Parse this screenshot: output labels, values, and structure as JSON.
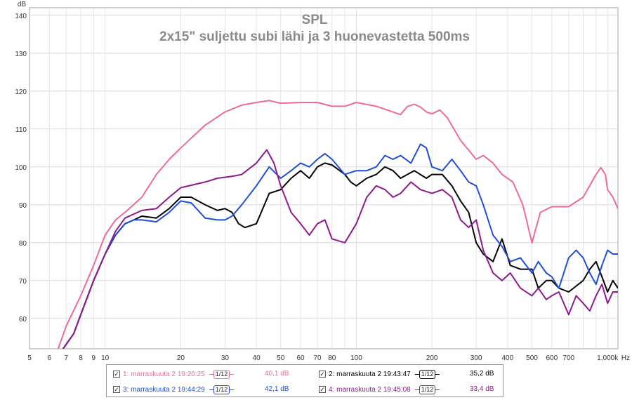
{
  "chart_data": {
    "type": "line",
    "title": "SPL",
    "subtitle": "2x15\" suljettu subi lähi ja 3 huonevastetta 500ms",
    "ylabel": "dB",
    "xlabel": "Hz",
    "x_scale": "log",
    "xlim": [
      5,
      1100
    ],
    "ylim": [
      52,
      142
    ],
    "y_ticks": [
      60,
      70,
      80,
      90,
      100,
      110,
      120,
      130,
      140
    ],
    "x_tick_values": [
      5,
      6,
      7,
      8,
      9,
      10,
      20,
      30,
      40,
      50,
      60,
      70,
      80,
      100,
      200,
      300,
      400,
      500,
      600,
      700,
      1000
    ],
    "x_tick_labels": [
      "5",
      "6",
      "7",
      "8",
      "9",
      "10",
      "20",
      "30",
      "40",
      "50",
      "60",
      "70",
      "80",
      "100",
      "200",
      "300",
      "400",
      "500",
      "600",
      "700",
      "1,000k"
    ],
    "grid": true,
    "legend_position": "bottom",
    "series": [
      {
        "name": "1: marraskuuta 2 19:20:25",
        "color": "#ee6a9a",
        "smoothing": "1/12",
        "level": "40,1 dB",
        "points": [
          [
            6.5,
            52
          ],
          [
            7,
            58
          ],
          [
            8,
            66
          ],
          [
            9,
            74
          ],
          [
            10,
            82
          ],
          [
            11,
            86
          ],
          [
            12,
            88
          ],
          [
            14,
            92
          ],
          [
            16,
            98
          ],
          [
            18,
            102
          ],
          [
            20,
            105
          ],
          [
            25,
            111
          ],
          [
            30,
            114.5
          ],
          [
            35,
            116.3
          ],
          [
            40,
            117
          ],
          [
            45,
            117.5
          ],
          [
            50,
            116.8
          ],
          [
            60,
            117
          ],
          [
            70,
            117
          ],
          [
            80,
            116
          ],
          [
            90,
            116
          ],
          [
            100,
            117
          ],
          [
            120,
            116
          ],
          [
            150,
            113.8
          ],
          [
            160,
            116
          ],
          [
            170,
            116.5
          ],
          [
            180,
            115.8
          ],
          [
            190,
            114.5
          ],
          [
            200,
            114
          ],
          [
            215,
            115
          ],
          [
            230,
            113
          ],
          [
            260,
            107
          ],
          [
            300,
            102
          ],
          [
            320,
            103
          ],
          [
            350,
            101
          ],
          [
            380,
            98
          ],
          [
            420,
            96
          ],
          [
            460,
            90
          ],
          [
            500,
            80
          ],
          [
            540,
            88
          ],
          [
            600,
            89.5
          ],
          [
            700,
            89.5
          ],
          [
            800,
            92
          ],
          [
            900,
            98
          ],
          [
            940,
            99.8
          ],
          [
            980,
            98
          ],
          [
            1000,
            94
          ],
          [
            1050,
            92
          ],
          [
            1100,
            89
          ]
        ]
      },
      {
        "name": "2: marraskuuta 2 19:43:47",
        "color": "#000000",
        "smoothing": "1/12",
        "level": "35,2 dB",
        "points": [
          [
            6.8,
            52
          ],
          [
            7.5,
            56
          ],
          [
            8,
            61
          ],
          [
            9,
            70
          ],
          [
            10,
            77
          ],
          [
            11,
            82
          ],
          [
            12,
            85
          ],
          [
            13,
            86
          ],
          [
            14,
            87
          ],
          [
            16,
            86.5
          ],
          [
            18,
            89
          ],
          [
            20,
            92
          ],
          [
            22,
            92
          ],
          [
            25,
            90
          ],
          [
            28,
            88.5
          ],
          [
            30,
            89
          ],
          [
            32,
            88
          ],
          [
            34,
            85
          ],
          [
            36,
            84
          ],
          [
            40,
            85
          ],
          [
            45,
            93
          ],
          [
            50,
            94
          ],
          [
            55,
            97
          ],
          [
            60,
            99
          ],
          [
            65,
            97
          ],
          [
            70,
            100
          ],
          [
            75,
            101
          ],
          [
            80,
            100.5
          ],
          [
            90,
            98
          ],
          [
            95,
            96
          ],
          [
            100,
            95
          ],
          [
            110,
            97
          ],
          [
            120,
            98
          ],
          [
            130,
            100
          ],
          [
            140,
            99
          ],
          [
            150,
            97
          ],
          [
            170,
            99
          ],
          [
            190,
            97
          ],
          [
            200,
            98
          ],
          [
            220,
            98
          ],
          [
            240,
            95
          ],
          [
            260,
            91
          ],
          [
            280,
            88
          ],
          [
            300,
            80
          ],
          [
            320,
            77
          ],
          [
            350,
            75
          ],
          [
            380,
            81
          ],
          [
            410,
            74
          ],
          [
            450,
            73
          ],
          [
            500,
            73
          ],
          [
            530,
            68
          ],
          [
            570,
            70
          ],
          [
            600,
            70
          ],
          [
            640,
            68
          ],
          [
            700,
            67
          ],
          [
            800,
            70
          ],
          [
            850,
            73
          ],
          [
            900,
            75
          ],
          [
            950,
            71
          ],
          [
            1000,
            67
          ],
          [
            1050,
            70
          ],
          [
            1100,
            68
          ]
        ]
      },
      {
        "name": "3: marraskuuta 2 19:44:29",
        "color": "#1f4fd8",
        "smoothing": "1/12",
        "level": "42,1 dB",
        "points": [
          [
            6.8,
            52
          ],
          [
            7.5,
            56
          ],
          [
            8,
            61
          ],
          [
            9,
            70
          ],
          [
            10,
            77
          ],
          [
            11,
            82
          ],
          [
            12,
            85
          ],
          [
            13,
            86
          ],
          [
            14,
            86
          ],
          [
            16,
            85.5
          ],
          [
            18,
            88
          ],
          [
            20,
            91
          ],
          [
            22,
            90.5
          ],
          [
            25,
            86.5
          ],
          [
            28,
            86
          ],
          [
            30,
            86
          ],
          [
            32,
            87
          ],
          [
            35,
            90
          ],
          [
            40,
            95
          ],
          [
            45,
            100
          ],
          [
            50,
            97
          ],
          [
            55,
            99
          ],
          [
            60,
            101
          ],
          [
            65,
            100
          ],
          [
            70,
            102
          ],
          [
            75,
            103.5
          ],
          [
            80,
            102
          ],
          [
            90,
            98
          ],
          [
            100,
            99
          ],
          [
            110,
            99
          ],
          [
            120,
            100
          ],
          [
            130,
            103
          ],
          [
            140,
            102
          ],
          [
            150,
            103
          ],
          [
            165,
            101
          ],
          [
            180,
            106
          ],
          [
            190,
            105
          ],
          [
            200,
            100
          ],
          [
            220,
            99
          ],
          [
            240,
            102
          ],
          [
            260,
            99
          ],
          [
            280,
            96
          ],
          [
            300,
            95
          ],
          [
            320,
            90
          ],
          [
            350,
            82
          ],
          [
            380,
            79
          ],
          [
            410,
            75
          ],
          [
            450,
            76
          ],
          [
            500,
            72
          ],
          [
            530,
            75
          ],
          [
            570,
            72
          ],
          [
            600,
            71
          ],
          [
            640,
            68
          ],
          [
            700,
            76
          ],
          [
            750,
            78
          ],
          [
            800,
            76
          ],
          [
            850,
            72
          ],
          [
            900,
            69
          ],
          [
            950,
            74
          ],
          [
            1000,
            78
          ],
          [
            1050,
            77
          ],
          [
            1100,
            77
          ]
        ]
      },
      {
        "name": "4: marraskuuta 2 19:45:08",
        "color": "#8e1a8e",
        "smoothing": "1/12",
        "level": "33,4 dB",
        "points": [
          [
            6.8,
            52
          ],
          [
            7.5,
            56
          ],
          [
            8,
            61
          ],
          [
            9,
            70
          ],
          [
            10,
            77
          ],
          [
            11,
            83
          ],
          [
            12,
            86.5
          ],
          [
            14,
            88.5
          ],
          [
            16,
            89
          ],
          [
            18,
            92
          ],
          [
            20,
            94.5
          ],
          [
            25,
            96
          ],
          [
            28,
            97
          ],
          [
            32,
            97.5
          ],
          [
            35,
            98
          ],
          [
            40,
            101
          ],
          [
            44,
            104.5
          ],
          [
            47,
            101
          ],
          [
            50,
            95
          ],
          [
            55,
            88
          ],
          [
            60,
            85
          ],
          [
            65,
            82
          ],
          [
            70,
            85
          ],
          [
            75,
            86
          ],
          [
            80,
            81
          ],
          [
            90,
            80
          ],
          [
            100,
            85
          ],
          [
            110,
            92
          ],
          [
            120,
            95
          ],
          [
            130,
            94
          ],
          [
            140,
            92
          ],
          [
            150,
            93
          ],
          [
            165,
            96
          ],
          [
            180,
            94
          ],
          [
            200,
            93
          ],
          [
            220,
            94
          ],
          [
            240,
            92
          ],
          [
            260,
            86
          ],
          [
            280,
            84
          ],
          [
            300,
            86
          ],
          [
            320,
            78
          ],
          [
            350,
            72
          ],
          [
            380,
            70
          ],
          [
            410,
            72
          ],
          [
            450,
            68
          ],
          [
            500,
            66
          ],
          [
            530,
            68
          ],
          [
            570,
            65
          ],
          [
            600,
            66
          ],
          [
            640,
            67
          ],
          [
            700,
            61
          ],
          [
            750,
            66
          ],
          [
            800,
            64
          ],
          [
            850,
            62
          ],
          [
            900,
            66
          ],
          [
            950,
            69
          ],
          [
            1000,
            64
          ],
          [
            1050,
            67
          ],
          [
            1100,
            67
          ]
        ]
      }
    ]
  }
}
